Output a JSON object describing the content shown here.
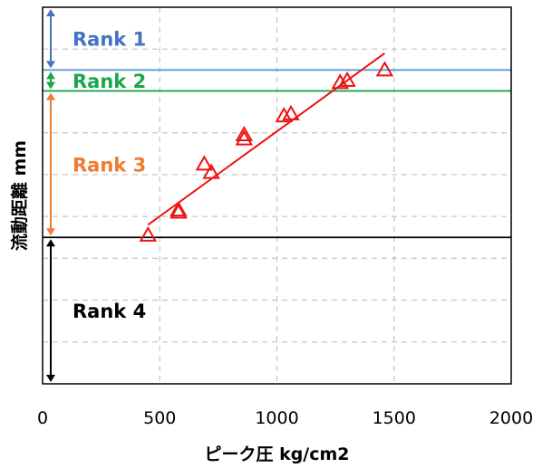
{
  "chart_data": {
    "type": "scatter",
    "title": "",
    "xlabel": "ピーク圧 kg/cm2",
    "ylabel": "流動距離 mm",
    "xlim": [
      0,
      2000
    ],
    "ylim": [
      0,
      9
    ],
    "xticks": [
      "0",
      "500",
      "1000",
      "1500",
      "2000"
    ],
    "grid": true,
    "series": [
      {
        "marker": "triangle",
        "color": "#ee1111",
        "points": [
          {
            "x": 450,
            "y": 3.55
          },
          {
            "x": 580,
            "y": 4.1
          },
          {
            "x": 580,
            "y": 4.15
          },
          {
            "x": 690,
            "y": 5.25
          },
          {
            "x": 720,
            "y": 5.05
          },
          {
            "x": 860,
            "y": 5.85
          },
          {
            "x": 860,
            "y": 5.95
          },
          {
            "x": 1030,
            "y": 6.4
          },
          {
            "x": 1060,
            "y": 6.45
          },
          {
            "x": 1270,
            "y": 7.2
          },
          {
            "x": 1300,
            "y": 7.25
          },
          {
            "x": 1460,
            "y": 7.5
          }
        ]
      }
    ],
    "trendline": {
      "color": "#ee1111",
      "x": [
        450,
        1460
      ],
      "y": [
        3.8,
        7.9
      ]
    },
    "thresholds": [
      {
        "y": 7.5,
        "color": "#5b9bd5"
      },
      {
        "y": 7.0,
        "color": "#1aa64a"
      },
      {
        "y": 3.5,
        "color": "#000000"
      }
    ],
    "ranks": [
      {
        "label": "Rank 1",
        "color": "#4472c4",
        "from": 7.5,
        "to": 9.0
      },
      {
        "label": "Rank 2",
        "color": "#1aa64a",
        "from": 7.0,
        "to": 7.5
      },
      {
        "label": "Rank 3",
        "color": "#ed7d31",
        "from": 3.5,
        "to": 7.0
      },
      {
        "label": "Rank 4",
        "color": "#000000",
        "from": 0.0,
        "to": 3.5
      }
    ]
  }
}
